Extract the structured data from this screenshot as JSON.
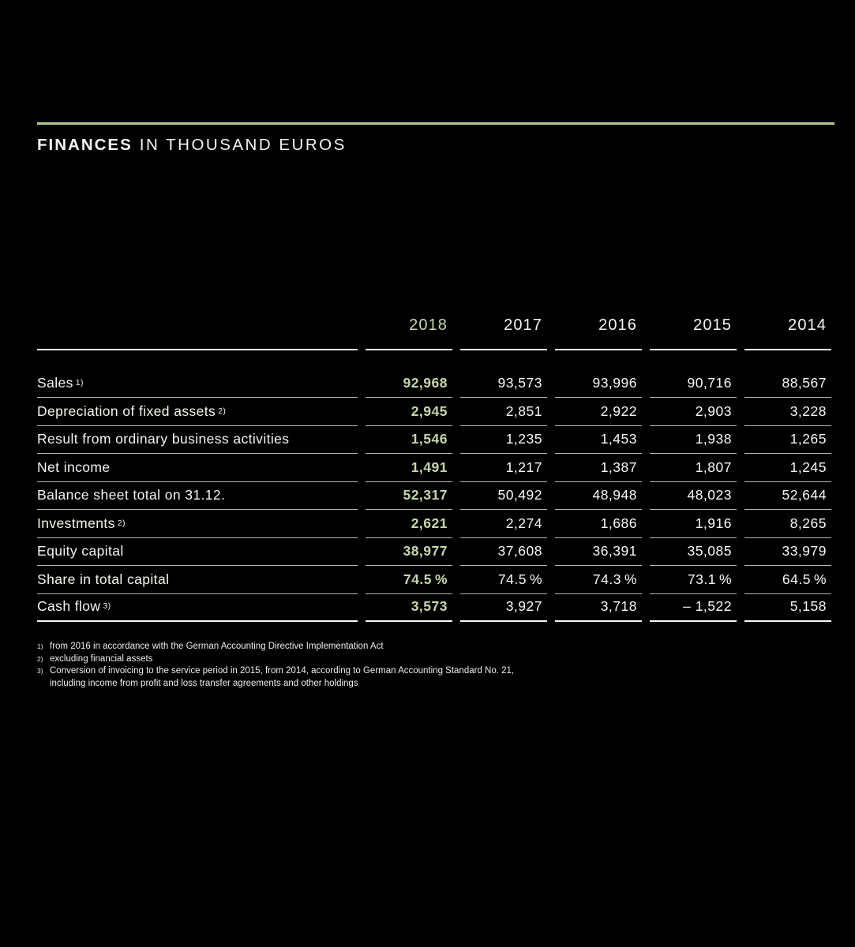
{
  "header": {
    "title_emphasis": "FINANCES",
    "title_rest": "IN THOUSAND EUROS"
  },
  "colors": {
    "background": "#000000",
    "accent_rule": "#b6ca95",
    "highlight_text": "#c6d6aa",
    "body_text": "#f5f5f0"
  },
  "table": {
    "unit": "thousand euros",
    "year_headers": [
      "2018",
      "2017",
      "2016",
      "2015",
      "2014"
    ],
    "highlight_year": "2018",
    "rows": [
      {
        "label": "Sales",
        "sup": "1)",
        "values": [
          "92,968",
          "93,573",
          "93,996",
          "90,716",
          "88,567"
        ]
      },
      {
        "label": "Depreciation of fixed assets",
        "sup": "2)",
        "values": [
          "2,945",
          "2,851",
          "2,922",
          "2,903",
          "3,228"
        ]
      },
      {
        "label": "Result from ordinary business activities",
        "sup": "",
        "values": [
          "1,546",
          "1,235",
          "1,453",
          "1,938",
          "1,265"
        ]
      },
      {
        "label": "Net income",
        "sup": "",
        "values": [
          "1,491",
          "1,217",
          "1,387",
          "1,807",
          "1,245"
        ]
      },
      {
        "label": "Balance sheet total on 31.12.",
        "sup": "",
        "values": [
          "52,317",
          "50,492",
          "48,948",
          "48,023",
          "52,644"
        ]
      },
      {
        "label": "Investments",
        "sup": "2)",
        "values": [
          "2,621",
          "2,274",
          "1,686",
          "1,916",
          "8,265"
        ]
      },
      {
        "label": "Equity capital",
        "sup": "",
        "values": [
          "38,977",
          "37,608",
          "36,391",
          "35,085",
          "33,979"
        ]
      },
      {
        "label": "Share in total capital",
        "sup": "",
        "values": [
          "74.5 %",
          "74.5 %",
          "74.3 %",
          "73.1 %",
          "64.5 %"
        ]
      },
      {
        "label": "Cash flow",
        "sup": "3)",
        "values": [
          "3,573",
          "3,927",
          "3,718",
          "– 1,522",
          "5,158"
        ]
      }
    ]
  },
  "footnotes": [
    {
      "marker": "1)",
      "lines": [
        "from 2016 in accordance with the German Accounting Directive Implementation Act"
      ]
    },
    {
      "marker": "2)",
      "lines": [
        "excluding financial assets"
      ]
    },
    {
      "marker": "3)",
      "lines": [
        "Conversion of invoicing to the service period in 2015, from 2014, according to German Accounting Standard No. 21,",
        "including income from profit and loss transfer agreements and other holdings"
      ]
    }
  ]
}
